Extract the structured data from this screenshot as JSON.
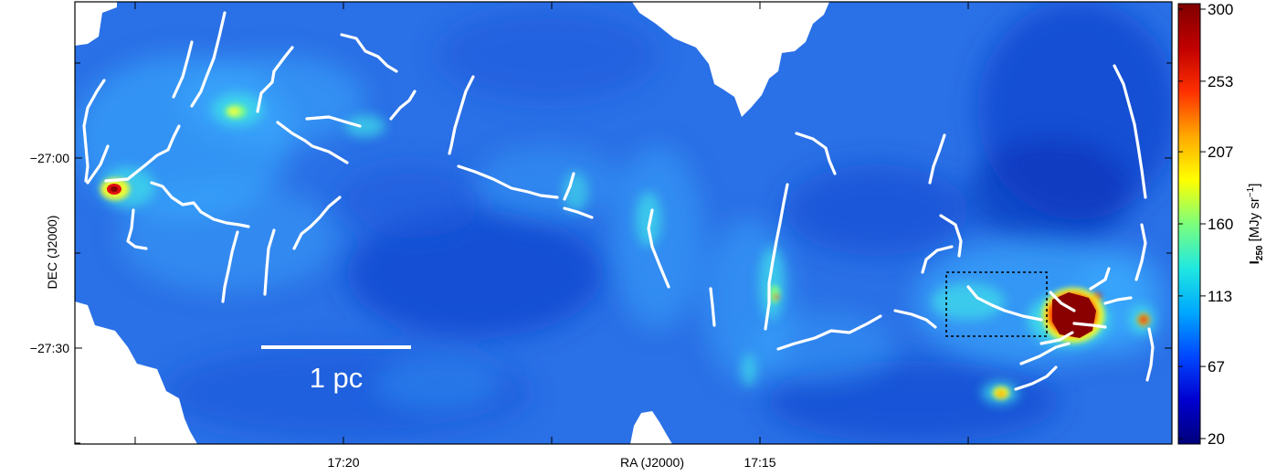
{
  "chart_data": {
    "type": "heatmap",
    "xlabel": "RA (J2000)",
    "ylabel": "DEC (J2000)",
    "x_ticks": [
      "17:20",
      "17:15"
    ],
    "y_ticks": [
      "−27:00",
      "−27:30"
    ],
    "colorbar": {
      "label_main": "I",
      "label_sub": "250",
      "label_unit_open": "[MJy sr",
      "label_unit_sup": "−1",
      "label_unit_close": "]",
      "ticks": [
        "20",
        "67",
        "113",
        "160",
        "207",
        "253",
        "300"
      ],
      "min": 20,
      "max": 300,
      "stops": [
        "#00007a",
        "#0000d0",
        "#0048ff",
        "#00a8ff",
        "#20e8e0",
        "#7cff7c",
        "#ffff00",
        "#ffa800",
        "#ff3000",
        "#c00000",
        "#800000"
      ]
    },
    "scale_bar": {
      "label": "1 pc"
    },
    "map": {
      "background": "#2a70e6",
      "colors": {
        "lowest": "#0a30b8",
        "low": "#1a58dc",
        "mid": "#3cb0ff",
        "bright": "#40e0e8",
        "green": "#80ff80",
        "yellow": "#ffff20",
        "red": "#e01010",
        "dark_red": "#8a0000",
        "mask": "#ffffff",
        "filament": "#ffffff"
      }
    }
  }
}
